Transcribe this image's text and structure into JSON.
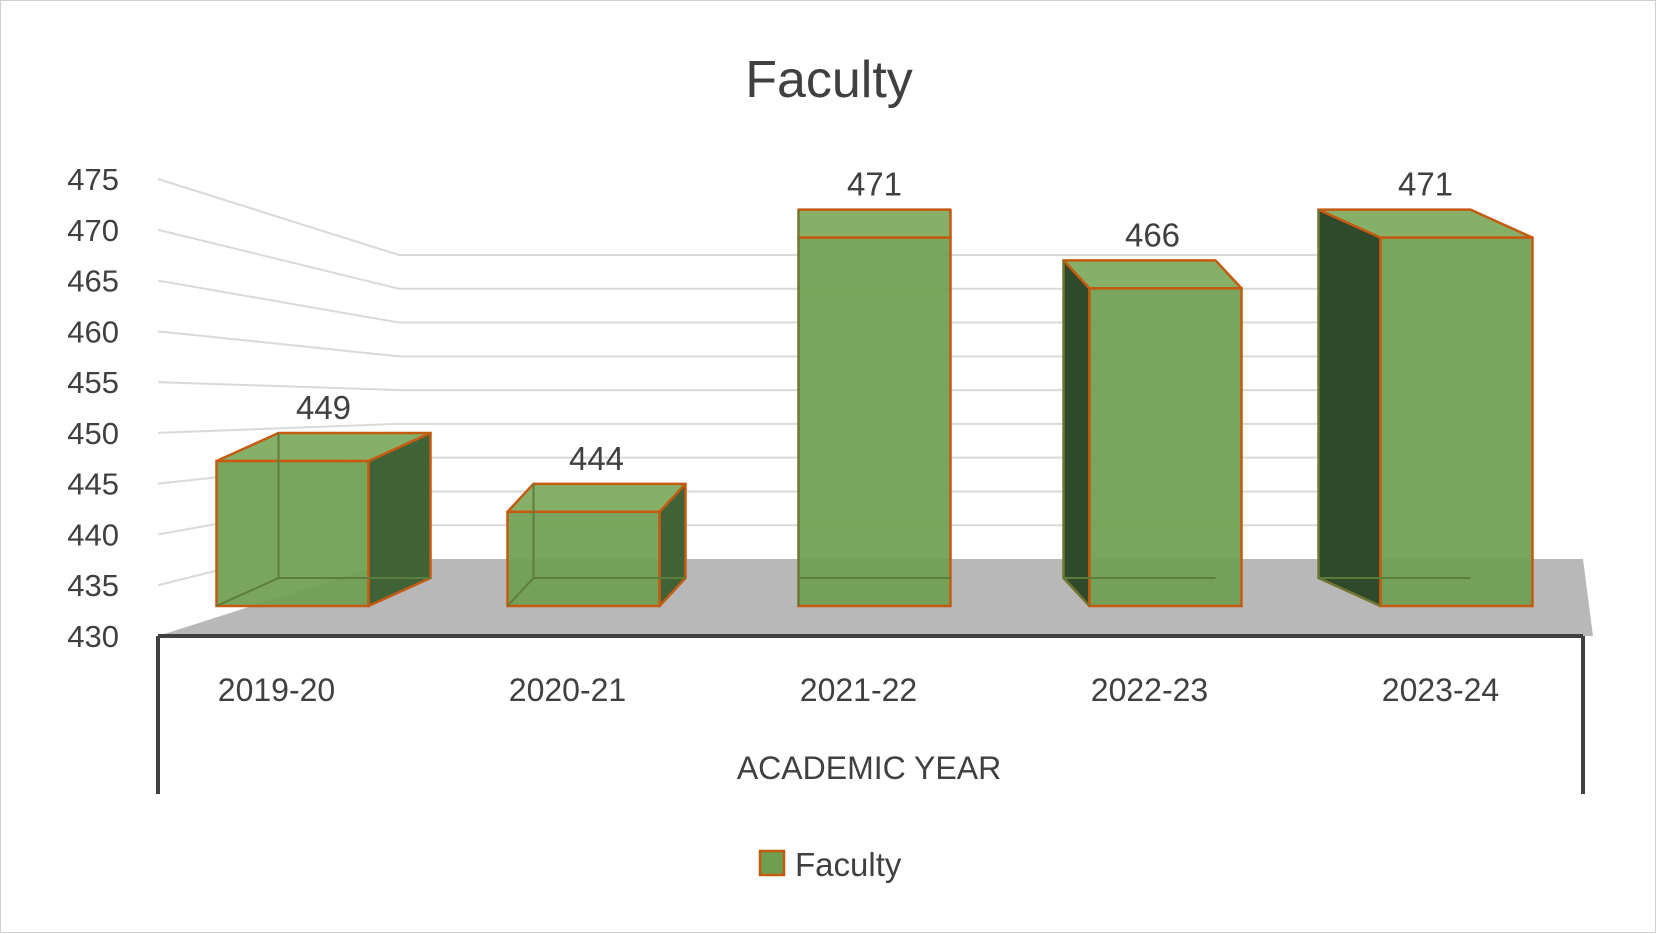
{
  "chart_data": {
    "type": "bar",
    "title": "Faculty",
    "xlabel": "ACADEMIC YEAR",
    "ylabel": "",
    "categories": [
      "2019-20",
      "2020-21",
      "2021-22",
      "2022-23",
      "2023-24"
    ],
    "series": [
      {
        "name": "Faculty",
        "values": [
          449,
          444,
          471,
          466,
          471
        ]
      }
    ],
    "data_labels": [
      "449",
      "444",
      "471",
      "466",
      "471"
    ],
    "yticks": [
      "430",
      "435",
      "440",
      "445",
      "450",
      "455",
      "460",
      "465",
      "470",
      "475"
    ],
    "ylim": [
      430,
      475
    ],
    "grid": true,
    "legend_position": "bottom",
    "three_d": true,
    "colors": {
      "bar_face": "#6f9e50",
      "bar_side": "#3f6237",
      "bar_top": "#86b067",
      "bar_edge": "#c55a11",
      "floor": "#b8b8b8",
      "grid": "#d9d9d9",
      "axis": "#404040"
    }
  }
}
